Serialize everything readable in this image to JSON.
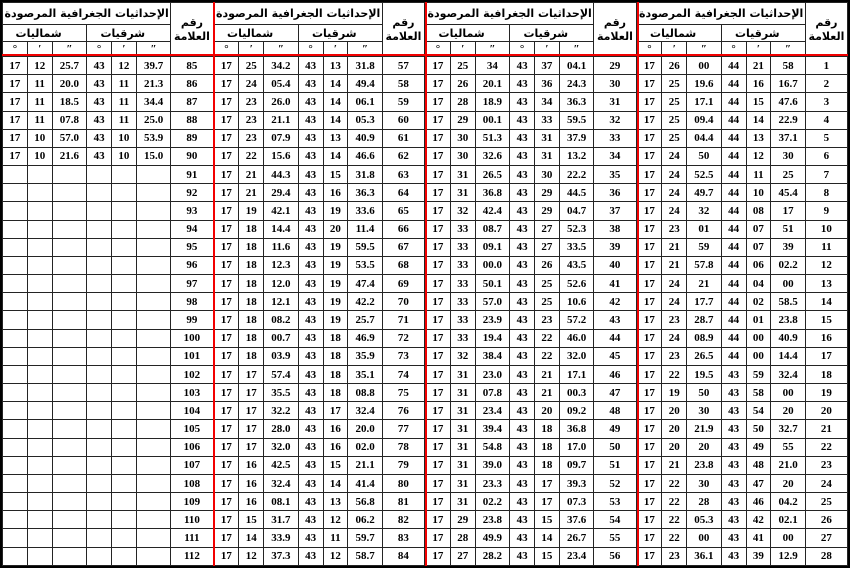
{
  "header": {
    "title": "الإحداثيات الجغرافية المرصودة",
    "north_label": "شماليات",
    "east_label": "شرقيات",
    "num_label_line1": "رقم",
    "num_label_line2": "العلامة",
    "deg_symbol": "°",
    "min_symbol": "′",
    "sec_symbol": "″"
  },
  "colors": {
    "separator_red": "#f20000",
    "grid": "#242424",
    "background": "#ffffff"
  },
  "panels": [
    {
      "mark_range": "85-112",
      "rows": [
        [
          "17",
          "12",
          "25.7",
          "43",
          "12",
          "39.7",
          "85"
        ],
        [
          "17",
          "11",
          "20.0",
          "43",
          "11",
          "21.3",
          "86"
        ],
        [
          "17",
          "11",
          "18.5",
          "43",
          "11",
          "34.4",
          "87"
        ],
        [
          "17",
          "11",
          "07.8",
          "43",
          "11",
          "25.0",
          "88"
        ],
        [
          "17",
          "10",
          "57.0",
          "43",
          "10",
          "53.9",
          "89"
        ],
        [
          "17",
          "10",
          "21.6",
          "43",
          "10",
          "15.0",
          "90"
        ],
        [
          "",
          "",
          "",
          "",
          "",
          "",
          "91"
        ],
        [
          "",
          "",
          "",
          "",
          "",
          "",
          "92"
        ],
        [
          "",
          "",
          "",
          "",
          "",
          "",
          "93"
        ],
        [
          "",
          "",
          "",
          "",
          "",
          "",
          "94"
        ],
        [
          "",
          "",
          "",
          "",
          "",
          "",
          "95"
        ],
        [
          "",
          "",
          "",
          "",
          "",
          "",
          "96"
        ],
        [
          "",
          "",
          "",
          "",
          "",
          "",
          "97"
        ],
        [
          "",
          "",
          "",
          "",
          "",
          "",
          "98"
        ],
        [
          "",
          "",
          "",
          "",
          "",
          "",
          "99"
        ],
        [
          "",
          "",
          "",
          "",
          "",
          "",
          "100"
        ],
        [
          "",
          "",
          "",
          "",
          "",
          "",
          "101"
        ],
        [
          "",
          "",
          "",
          "",
          "",
          "",
          "102"
        ],
        [
          "",
          "",
          "",
          "",
          "",
          "",
          "103"
        ],
        [
          "",
          "",
          "",
          "",
          "",
          "",
          "104"
        ],
        [
          "",
          "",
          "",
          "",
          "",
          "",
          "105"
        ],
        [
          "",
          "",
          "",
          "",
          "",
          "",
          "106"
        ],
        [
          "",
          "",
          "",
          "",
          "",
          "",
          "107"
        ],
        [
          "",
          "",
          "",
          "",
          "",
          "",
          "108"
        ],
        [
          "",
          "",
          "",
          "",
          "",
          "",
          "109"
        ],
        [
          "",
          "",
          "",
          "",
          "",
          "",
          "110"
        ],
        [
          "",
          "",
          "",
          "",
          "",
          "",
          "111"
        ],
        [
          "",
          "",
          "",
          "",
          "",
          "",
          "112"
        ]
      ]
    },
    {
      "mark_range": "57-84",
      "rows": [
        [
          "17",
          "25",
          "34.2",
          "43",
          "13",
          "31.8",
          "57"
        ],
        [
          "17",
          "24",
          "05.4",
          "43",
          "14",
          "49.4",
          "58"
        ],
        [
          "17",
          "23",
          "26.0",
          "43",
          "14",
          "06.1",
          "59"
        ],
        [
          "17",
          "23",
          "21.1",
          "43",
          "14",
          "05.3",
          "60"
        ],
        [
          "17",
          "23",
          "07.9",
          "43",
          "13",
          "40.9",
          "61"
        ],
        [
          "17",
          "22",
          "15.6",
          "43",
          "14",
          "46.6",
          "62"
        ],
        [
          "17",
          "21",
          "44.3",
          "43",
          "15",
          "31.8",
          "63"
        ],
        [
          "17",
          "21",
          "29.4",
          "43",
          "16",
          "36.3",
          "64"
        ],
        [
          "17",
          "19",
          "42.1",
          "43",
          "19",
          "33.6",
          "65"
        ],
        [
          "17",
          "18",
          "14.4",
          "43",
          "20",
          "11.4",
          "66"
        ],
        [
          "17",
          "18",
          "11.6",
          "43",
          "19",
          "59.5",
          "67"
        ],
        [
          "17",
          "18",
          "12.3",
          "43",
          "19",
          "53.5",
          "68"
        ],
        [
          "17",
          "18",
          "12.0",
          "43",
          "19",
          "47.4",
          "69"
        ],
        [
          "17",
          "18",
          "12.1",
          "43",
          "19",
          "42.2",
          "70"
        ],
        [
          "17",
          "18",
          "08.2",
          "43",
          "19",
          "25.7",
          "71"
        ],
        [
          "17",
          "18",
          "00.7",
          "43",
          "18",
          "46.9",
          "72"
        ],
        [
          "17",
          "18",
          "03.9",
          "43",
          "18",
          "35.9",
          "73"
        ],
        [
          "17",
          "17",
          "57.4",
          "43",
          "18",
          "35.1",
          "74"
        ],
        [
          "17",
          "17",
          "35.5",
          "43",
          "18",
          "08.8",
          "75"
        ],
        [
          "17",
          "17",
          "32.2",
          "43",
          "17",
          "32.4",
          "76"
        ],
        [
          "17",
          "17",
          "28.0",
          "43",
          "16",
          "20.0",
          "77"
        ],
        [
          "17",
          "17",
          "32.0",
          "43",
          "16",
          "02.0",
          "78"
        ],
        [
          "17",
          "16",
          "42.5",
          "43",
          "15",
          "21.1",
          "79"
        ],
        [
          "17",
          "16",
          "32.4",
          "43",
          "14",
          "41.4",
          "80"
        ],
        [
          "17",
          "16",
          "08.1",
          "43",
          "13",
          "56.8",
          "81"
        ],
        [
          "17",
          "15",
          "31.7",
          "43",
          "12",
          "06.2",
          "82"
        ],
        [
          "17",
          "14",
          "33.9",
          "43",
          "11",
          "59.7",
          "83"
        ],
        [
          "17",
          "12",
          "37.3",
          "43",
          "12",
          "58.7",
          "84"
        ]
      ]
    },
    {
      "mark_range": "29-56",
      "rows": [
        [
          "17",
          "25",
          "34",
          "43",
          "37",
          "04.1",
          "29"
        ],
        [
          "17",
          "26",
          "20.1",
          "43",
          "36",
          "24.3",
          "30"
        ],
        [
          "17",
          "28",
          "18.9",
          "43",
          "34",
          "36.3",
          "31"
        ],
        [
          "17",
          "29",
          "00.1",
          "43",
          "33",
          "59.5",
          "32"
        ],
        [
          "17",
          "30",
          "51.3",
          "43",
          "31",
          "37.9",
          "33"
        ],
        [
          "17",
          "30",
          "32.6",
          "43",
          "31",
          "13.2",
          "34"
        ],
        [
          "17",
          "31",
          "26.5",
          "43",
          "30",
          "22.2",
          "35"
        ],
        [
          "17",
          "31",
          "36.8",
          "43",
          "29",
          "44.5",
          "36"
        ],
        [
          "17",
          "32",
          "42.4",
          "43",
          "29",
          "04.7",
          "37"
        ],
        [
          "17",
          "33",
          "08.7",
          "43",
          "27",
          "52.3",
          "38"
        ],
        [
          "17",
          "33",
          "09.1",
          "43",
          "27",
          "33.5",
          "39"
        ],
        [
          "17",
          "33",
          "00.0",
          "43",
          "26",
          "43.5",
          "40"
        ],
        [
          "17",
          "33",
          "50.1",
          "43",
          "25",
          "52.6",
          "41"
        ],
        [
          "17",
          "33",
          "57.0",
          "43",
          "25",
          "10.6",
          "42"
        ],
        [
          "17",
          "33",
          "23.9",
          "43",
          "23",
          "57.2",
          "43"
        ],
        [
          "17",
          "33",
          "19.4",
          "43",
          "22",
          "46.0",
          "44"
        ],
        [
          "17",
          "32",
          "38.4",
          "43",
          "22",
          "32.0",
          "45"
        ],
        [
          "17",
          "31",
          "23.0",
          "43",
          "21",
          "17.1",
          "46"
        ],
        [
          "17",
          "31",
          "07.8",
          "43",
          "21",
          "00.3",
          "47"
        ],
        [
          "17",
          "31",
          "23.4",
          "43",
          "20",
          "09.2",
          "48"
        ],
        [
          "17",
          "31",
          "39.4",
          "43",
          "18",
          "36.8",
          "49"
        ],
        [
          "17",
          "31",
          "54.8",
          "43",
          "18",
          "17.0",
          "50"
        ],
        [
          "17",
          "31",
          "39.0",
          "43",
          "18",
          "09.7",
          "51"
        ],
        [
          "17",
          "31",
          "23.3",
          "43",
          "17",
          "39.3",
          "52"
        ],
        [
          "17",
          "31",
          "02.2",
          "43",
          "17",
          "07.3",
          "53"
        ],
        [
          "17",
          "29",
          "23.8",
          "43",
          "15",
          "37.6",
          "54"
        ],
        [
          "17",
          "28",
          "49.9",
          "43",
          "14",
          "26.7",
          "55"
        ],
        [
          "17",
          "27",
          "28.2",
          "43",
          "15",
          "23.4",
          "56"
        ]
      ]
    },
    {
      "mark_range": "1-28",
      "rows": [
        [
          "17",
          "26",
          "00",
          "44",
          "21",
          "58",
          "1"
        ],
        [
          "17",
          "25",
          "19.6",
          "44",
          "16",
          "16.7",
          "2"
        ],
        [
          "17",
          "25",
          "17.1",
          "44",
          "15",
          "47.6",
          "3"
        ],
        [
          "17",
          "25",
          "09.4",
          "44",
          "14",
          "22.9",
          "4"
        ],
        [
          "17",
          "25",
          "04.4",
          "44",
          "13",
          "37.1",
          "5"
        ],
        [
          "17",
          "24",
          "50",
          "44",
          "12",
          "30",
          "6"
        ],
        [
          "17",
          "24",
          "52.5",
          "44",
          "11",
          "25",
          "7"
        ],
        [
          "17",
          "24",
          "49.7",
          "44",
          "10",
          "45.4",
          "8"
        ],
        [
          "17",
          "24",
          "32",
          "44",
          "08",
          "17",
          "9"
        ],
        [
          "17",
          "23",
          "01",
          "44",
          "07",
          "51",
          "10"
        ],
        [
          "17",
          "21",
          "59",
          "44",
          "07",
          "39",
          "11"
        ],
        [
          "17",
          "21",
          "57.8",
          "44",
          "06",
          "02.2",
          "12"
        ],
        [
          "17",
          "24",
          "21",
          "44",
          "04",
          "00",
          "13"
        ],
        [
          "17",
          "24",
          "17.7",
          "44",
          "02",
          "58.5",
          "14"
        ],
        [
          "17",
          "23",
          "28.7",
          "44",
          "01",
          "23.8",
          "15"
        ],
        [
          "17",
          "24",
          "08.9",
          "44",
          "00",
          "40.9",
          "16"
        ],
        [
          "17",
          "23",
          "26.5",
          "44",
          "00",
          "14.4",
          "17"
        ],
        [
          "17",
          "22",
          "19.5",
          "43",
          "59",
          "32.4",
          "18"
        ],
        [
          "17",
          "19",
          "50",
          "43",
          "58",
          "00",
          "19"
        ],
        [
          "17",
          "20",
          "30",
          "43",
          "54",
          "20",
          "20"
        ],
        [
          "17",
          "20",
          "21.9",
          "43",
          "50",
          "32.7",
          "21"
        ],
        [
          "17",
          "20",
          "20",
          "43",
          "49",
          "55",
          "22"
        ],
        [
          "17",
          "21",
          "23.8",
          "43",
          "48",
          "21.0",
          "23"
        ],
        [
          "17",
          "22",
          "30",
          "43",
          "47",
          "20",
          "24"
        ],
        [
          "17",
          "22",
          "28",
          "43",
          "46",
          "04.2",
          "25"
        ],
        [
          "17",
          "22",
          "05.3",
          "43",
          "42",
          "02.1",
          "26"
        ],
        [
          "17",
          "22",
          "00",
          "43",
          "41",
          "00",
          "27"
        ],
        [
          "17",
          "23",
          "36.1",
          "43",
          "39",
          "12.9",
          "28"
        ]
      ]
    }
  ]
}
